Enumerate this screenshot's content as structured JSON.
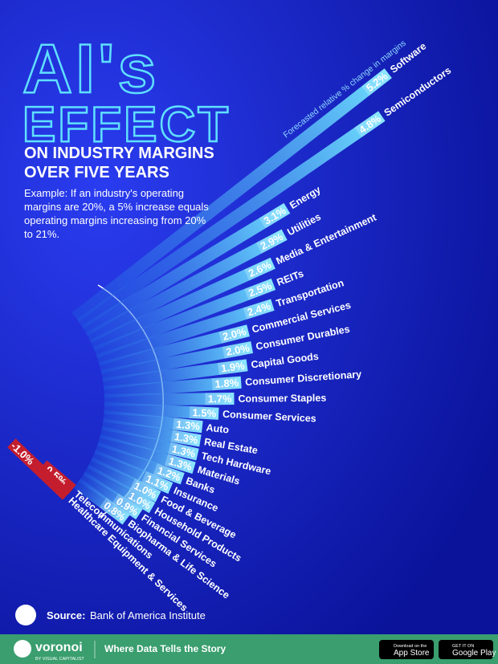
{
  "chart_data": {
    "type": "radial-bar",
    "title": "AI's",
    "title_line2": "EFFECT",
    "subtitle": "ON INDUSTRY MARGINS",
    "subtitle_line2": "OVER FIVE YEARS",
    "note": "Example: If an industry's operating margins are 20%, a 5% increase equals operating margins increasing from 20% to 21%.",
    "axis_label": "Forecasted relative % change in margins",
    "categories": [
      "Software",
      "Semiconductors",
      "Energy",
      "Utilities",
      "Media & Entertainment",
      "REITs",
      "Transportation",
      "Commercial Services",
      "Consumer Durables",
      "Capital Goods",
      "Consumer Discretionary",
      "Consumer Staples",
      "Consumer Services",
      "Auto",
      "Real Estate",
      "Tech Hardware",
      "Materials",
      "Banks",
      "Insurance",
      "Food & Beverage",
      "Household Products",
      "Financial Services",
      "Biopharma & Life Science",
      "Telecommunications",
      "Healthcare Equipment & Services"
    ],
    "values": [
      5.2,
      4.8,
      3.1,
      2.9,
      2.6,
      2.5,
      2.4,
      2.0,
      2.0,
      1.9,
      1.8,
      1.7,
      1.5,
      1.3,
      1.3,
      1.3,
      1.3,
      1.2,
      1.1,
      1.0,
      1.0,
      0.9,
      0.8,
      -0.5,
      -1.0
    ],
    "value_labels": [
      "5.2%",
      "4.8%",
      "3.1%",
      "2.9%",
      "2.6%",
      "2.5%",
      "2.4%",
      "2.0%",
      "2.0%",
      "1.9%",
      "1.8%",
      "1.7%",
      "1.5%",
      "1.3%",
      "1.3%",
      "1.3%",
      "1.3%",
      "1.2%",
      "1.1%",
      "1.0%",
      "1.0%",
      "0.9%",
      "0.8%",
      "-0.5%",
      "-1.0%"
    ],
    "color": "#4fc8ff",
    "negative_color": "#c41e2e",
    "source_label": "Source:",
    "source": "Bank of America Institute"
  },
  "footer": {
    "brand": "voronoi",
    "brand_sub": "BY VISUAL CAPITALIST",
    "tagline": "Where Data Tells the Story",
    "app_store_small": "Download on the",
    "app_store": "App Store",
    "google_play_small": "GET IT ON",
    "google_play": "Google Play"
  }
}
